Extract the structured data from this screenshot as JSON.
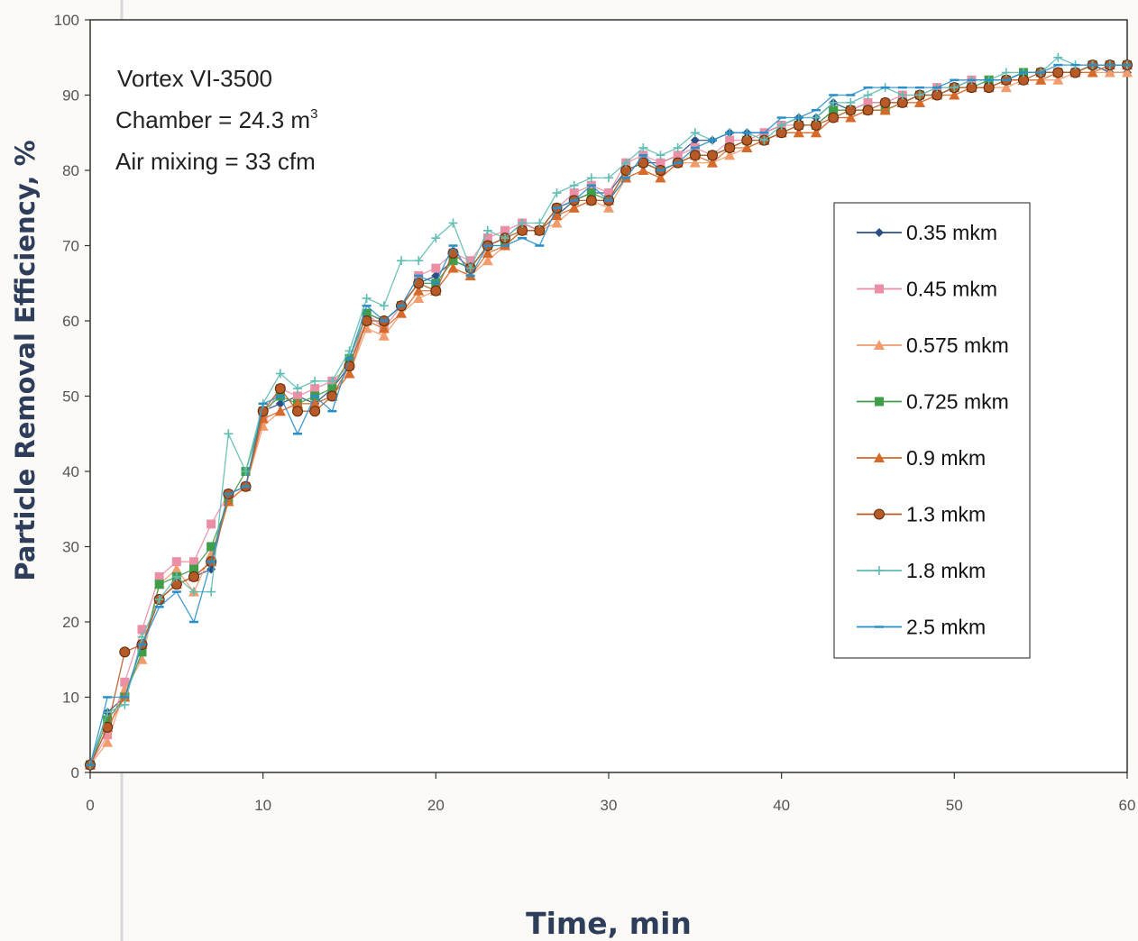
{
  "chart_data": {
    "type": "line",
    "title": "",
    "xlabel": "Time, min",
    "ylabel": "Particle Removal Efficiency, %",
    "xlim": [
      0,
      60
    ],
    "ylim": [
      0,
      100
    ],
    "xticks": [
      0,
      10,
      20,
      30,
      40,
      50,
      60
    ],
    "yticks": [
      0,
      10,
      20,
      30,
      40,
      50,
      60,
      70,
      80,
      90,
      100
    ],
    "grid": false,
    "legend_position": "right",
    "annotations": {
      "line1": "Vortex VI-3500",
      "line2": "Chamber = 24.3 m",
      "line2_sup": "3",
      "line3": "Air mixing = 33 cfm"
    },
    "x": [
      0,
      1,
      2,
      3,
      4,
      5,
      6,
      7,
      8,
      9,
      10,
      11,
      12,
      13,
      14,
      15,
      16,
      17,
      18,
      19,
      20,
      21,
      22,
      23,
      24,
      25,
      26,
      27,
      28,
      29,
      30,
      31,
      32,
      33,
      34,
      35,
      36,
      37,
      38,
      39,
      40,
      41,
      42,
      43,
      44,
      45,
      46,
      47,
      48,
      49,
      50,
      51,
      52,
      53,
      54,
      55,
      56,
      57,
      58,
      59,
      60
    ],
    "series": [
      {
        "name": "0.35 mkm",
        "color": "#2b4f86",
        "marker": "diamond",
        "values": [
          1,
          8,
          10,
          17,
          23,
          25,
          26,
          27,
          37,
          38,
          48,
          49,
          50,
          49,
          51,
          54,
          61,
          60,
          62,
          65,
          66,
          68,
          67,
          70,
          71,
          73,
          72,
          74,
          76,
          77,
          77,
          80,
          81,
          81,
          82,
          84,
          84,
          85,
          85,
          85,
          86,
          87,
          87,
          89,
          88,
          89,
          89,
          89,
          90,
          90,
          91,
          92,
          92,
          92,
          93,
          93,
          93,
          93,
          94,
          93,
          93
        ]
      },
      {
        "name": "0.45 mkm",
        "color": "#ea8fa6",
        "marker": "square",
        "values": [
          1,
          5,
          12,
          19,
          26,
          28,
          28,
          33,
          37,
          38,
          47,
          51,
          50,
          51,
          52,
          54,
          61,
          59,
          62,
          66,
          67,
          69,
          68,
          71,
          72,
          73,
          72,
          75,
          77,
          78,
          77,
          81,
          82,
          81,
          82,
          83,
          82,
          84,
          84,
          85,
          86,
          86,
          86,
          88,
          88,
          89,
          89,
          90,
          90,
          91,
          91,
          92,
          92,
          92,
          93,
          93,
          93,
          93,
          94,
          94,
          94
        ]
      },
      {
        "name": "0.575 mkm",
        "color": "#f29b6d",
        "marker": "triangle",
        "values": [
          1,
          4,
          11,
          15,
          25,
          27,
          24,
          29,
          36,
          38,
          46,
          48,
          49,
          49,
          50,
          53,
          59,
          58,
          61,
          63,
          64,
          67,
          66,
          68,
          70,
          72,
          72,
          73,
          75,
          76,
          75,
          79,
          80,
          79,
          81,
          81,
          81,
          82,
          83,
          84,
          85,
          85,
          85,
          87,
          87,
          88,
          88,
          89,
          89,
          90,
          90,
          91,
          91,
          91,
          92,
          92,
          92,
          93,
          93,
          93,
          93
        ]
      },
      {
        "name": "0.725 mkm",
        "color": "#3f9e4a",
        "marker": "square",
        "values": [
          1,
          7,
          10,
          16,
          25,
          26,
          27,
          30,
          36,
          40,
          48,
          50,
          49,
          50,
          51,
          55,
          61,
          60,
          62,
          65,
          65,
          68,
          67,
          70,
          70,
          72,
          72,
          75,
          76,
          77,
          76,
          80,
          81,
          80,
          81,
          82,
          82,
          83,
          84,
          84,
          85,
          86,
          86,
          88,
          88,
          88,
          88,
          89,
          90,
          90,
          91,
          91,
          92,
          92,
          93,
          93,
          93,
          93,
          94,
          94,
          94
        ]
      },
      {
        "name": "0.9 mkm",
        "color": "#d66a2a",
        "marker": "triangle",
        "values": [
          1,
          6,
          10,
          17,
          23,
          25,
          26,
          28,
          36,
          38,
          47,
          48,
          49,
          49,
          50,
          53,
          60,
          59,
          61,
          64,
          64,
          67,
          66,
          69,
          70,
          72,
          72,
          74,
          75,
          76,
          76,
          79,
          80,
          79,
          81,
          82,
          81,
          83,
          83,
          84,
          85,
          85,
          85,
          87,
          87,
          88,
          88,
          89,
          89,
          90,
          90,
          91,
          91,
          92,
          92,
          92,
          93,
          93,
          93,
          94,
          94
        ]
      },
      {
        "name": "1.3 mkm",
        "color": "#b85a25",
        "marker": "circle",
        "values": [
          1,
          6,
          16,
          17,
          23,
          25,
          26,
          28,
          37,
          38,
          48,
          51,
          48,
          48,
          50,
          54,
          60,
          60,
          62,
          65,
          64,
          69,
          67,
          70,
          71,
          72,
          72,
          75,
          76,
          76,
          76,
          80,
          81,
          80,
          81,
          82,
          82,
          83,
          84,
          84,
          85,
          86,
          86,
          87,
          88,
          88,
          89,
          89,
          90,
          90,
          91,
          91,
          91,
          92,
          92,
          93,
          93,
          93,
          94,
          94,
          94
        ]
      },
      {
        "name": "1.8 mkm",
        "color": "#5fbdb2",
        "marker": "plus",
        "values": [
          1,
          8,
          9,
          18,
          23,
          26,
          24,
          24,
          45,
          40,
          49,
          53,
          51,
          52,
          52,
          56,
          63,
          62,
          68,
          68,
          71,
          73,
          67,
          72,
          71,
          73,
          73,
          77,
          78,
          79,
          79,
          81,
          83,
          82,
          83,
          85,
          84,
          85,
          85,
          84,
          86,
          87,
          87,
          89,
          89,
          90,
          91,
          90,
          90,
          91,
          91,
          92,
          92,
          93,
          93,
          93,
          95,
          94,
          94,
          94,
          94
        ]
      },
      {
        "name": "2.5 mkm",
        "color": "#2a8fc9",
        "marker": "dash",
        "values": [
          1,
          10,
          10,
          17,
          22,
          24,
          20,
          28,
          37,
          38,
          49,
          50,
          45,
          50,
          48,
          55,
          62,
          60,
          62,
          66,
          65,
          70,
          66,
          70,
          70,
          71,
          70,
          75,
          76,
          78,
          76,
          79,
          82,
          80,
          81,
          83,
          84,
          85,
          85,
          85,
          87,
          87,
          88,
          90,
          90,
          91,
          91,
          91,
          91,
          91,
          92,
          92,
          92,
          92,
          93,
          93,
          94,
          94,
          94,
          94,
          94
        ]
      }
    ]
  }
}
